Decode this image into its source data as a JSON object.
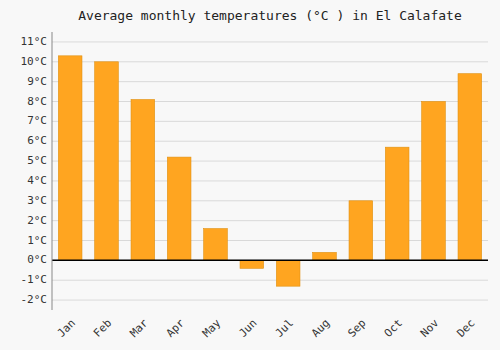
{
  "chart_data": {
    "type": "bar",
    "title": "Average monthly temperatures (°C ) in El Calafate",
    "categories": [
      "Jan",
      "Feb",
      "Mar",
      "Apr",
      "May",
      "Jun",
      "Jul",
      "Aug",
      "Sep",
      "Oct",
      "Nov",
      "Dec"
    ],
    "values": [
      10.3,
      10.0,
      8.1,
      5.2,
      1.6,
      -0.4,
      -1.3,
      0.4,
      3.0,
      5.7,
      8.0,
      9.4
    ],
    "color": "#FFA520",
    "ylim": [
      -2.5,
      11.5
    ],
    "yticks": [
      {
        "value": -2,
        "label": "-2°C"
      },
      {
        "value": -1,
        "label": "-1°C"
      },
      {
        "value": 0,
        "label": "0°C"
      },
      {
        "value": 1,
        "label": "1°C"
      },
      {
        "value": 2,
        "label": "2°C"
      },
      {
        "value": 3,
        "label": "3°C"
      },
      {
        "value": 4,
        "label": "4°C"
      },
      {
        "value": 5,
        "label": "5°C"
      },
      {
        "value": 6,
        "label": "6°C"
      },
      {
        "value": 7,
        "label": "7°C"
      },
      {
        "value": 8,
        "label": "8°C"
      },
      {
        "value": 9,
        "label": "9°C"
      },
      {
        "value": 10,
        "label": "10°C"
      },
      {
        "value": 11,
        "label": "11°C"
      }
    ],
    "grid": true
  }
}
